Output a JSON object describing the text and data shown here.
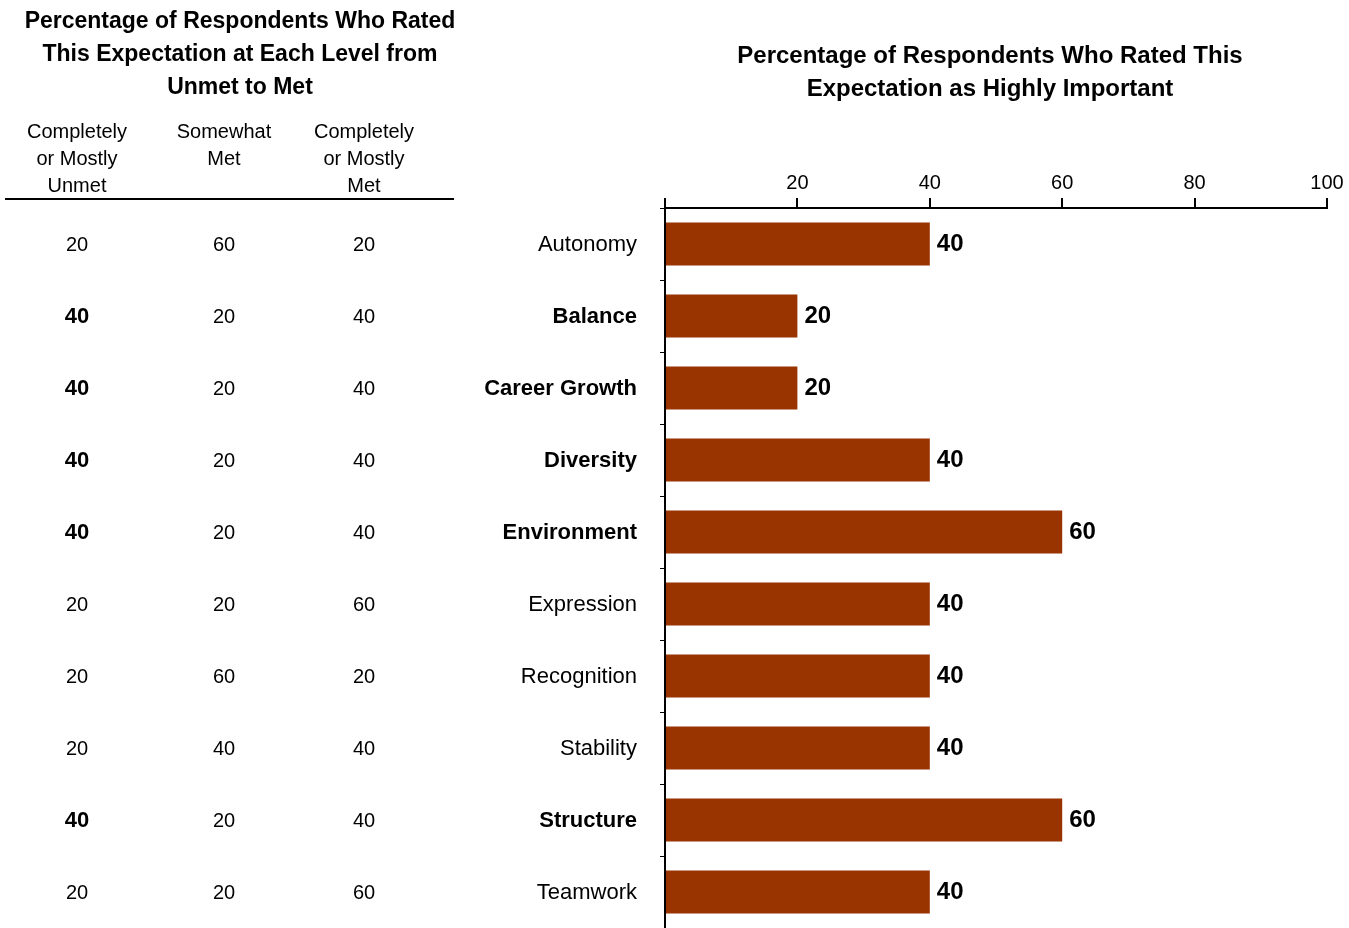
{
  "chart_data": [
    {
      "type": "heatmap",
      "data_labels": true,
      "y_categories": [
        "Autonomy",
        "Balance",
        "Career Growth",
        "Diversity",
        "Environment",
        "Expression",
        "Recognition",
        "Stability",
        "Structure",
        "Teamwork"
      ],
      "title": "Percentage of Respondents Who Rated This Expectation at Each Level from Unmet to Met",
      "categories": [
        "Completely or Mostly Unmet",
        "Somewhat Met",
        "Completely or Mostly Met"
      ],
      "cells": [
        [
          20,
          60,
          20
        ],
        [
          40,
          20,
          40
        ],
        [
          40,
          20,
          40
        ],
        [
          40,
          20,
          40
        ],
        [
          40,
          20,
          40
        ],
        [
          20,
          20,
          60
        ],
        [
          20,
          60,
          20
        ],
        [
          20,
          40,
          40
        ],
        [
          40,
          20,
          40
        ],
        [
          20,
          20,
          60
        ]
      ]
    },
    {
      "type": "bar",
      "orientation": "horizontal",
      "title": "Percentage of Respondents Who Rated This Expectation as Highly Important",
      "categories": [
        null,
        null,
        null,
        null,
        null,
        null,
        null,
        null,
        null,
        null
      ],
      "tick_labels": "x",
      "values": [
        40,
        20,
        20,
        40,
        60,
        40,
        40,
        40,
        60,
        40
      ],
      "color": "#993300",
      "xlim": [
        0,
        100
      ],
      "xticks": [
        {
          "value": 0,
          "label": null
        },
        20,
        40,
        60,
        80,
        100
      ],
      "data_labels": true,
      "grid": false,
      "legend": false
    }
  ]
}
